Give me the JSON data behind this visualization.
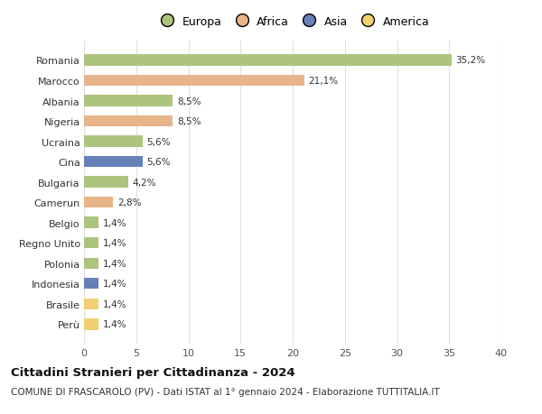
{
  "categories": [
    "Perù",
    "Brasile",
    "Indonesia",
    "Polonia",
    "Regno Unito",
    "Belgio",
    "Camerun",
    "Bulgaria",
    "Cina",
    "Ucraina",
    "Nigeria",
    "Albania",
    "Marocco",
    "Romania"
  ],
  "values": [
    1.4,
    1.4,
    1.4,
    1.4,
    1.4,
    1.4,
    2.8,
    4.2,
    5.6,
    5.6,
    8.5,
    8.5,
    21.1,
    35.2
  ],
  "labels": [
    "1,4%",
    "1,4%",
    "1,4%",
    "1,4%",
    "1,4%",
    "1,4%",
    "2,8%",
    "4,2%",
    "5,6%",
    "5,6%",
    "8,5%",
    "8,5%",
    "21,1%",
    "35,2%"
  ],
  "continents": [
    "America",
    "America",
    "Asia",
    "Europa",
    "Europa",
    "Europa",
    "Africa",
    "Europa",
    "Asia",
    "Europa",
    "Africa",
    "Europa",
    "Africa",
    "Europa"
  ],
  "colors": {
    "Europa": "#adc47e",
    "Africa": "#e8b48a",
    "Asia": "#6680b8",
    "America": "#f0d070"
  },
  "legend_order": [
    "Europa",
    "Africa",
    "Asia",
    "America"
  ],
  "title": "Cittadini Stranieri per Cittadinanza - 2024",
  "subtitle": "COMUNE DI FRASCAROLO (PV) - Dati ISTAT al 1° gennaio 2024 - Elaborazione TUTTITALIA.IT",
  "xlim": [
    0,
    40
  ],
  "xticks": [
    0,
    5,
    10,
    15,
    20,
    25,
    30,
    35,
    40
  ],
  "background_color": "#ffffff",
  "axes_bg_color": "#ffffff",
  "grid_color": "#e0e0e0",
  "bar_height": 0.55,
  "title_fontsize": 9.5,
  "subtitle_fontsize": 7.5,
  "label_fontsize": 7.5,
  "tick_fontsize": 8,
  "legend_fontsize": 9
}
